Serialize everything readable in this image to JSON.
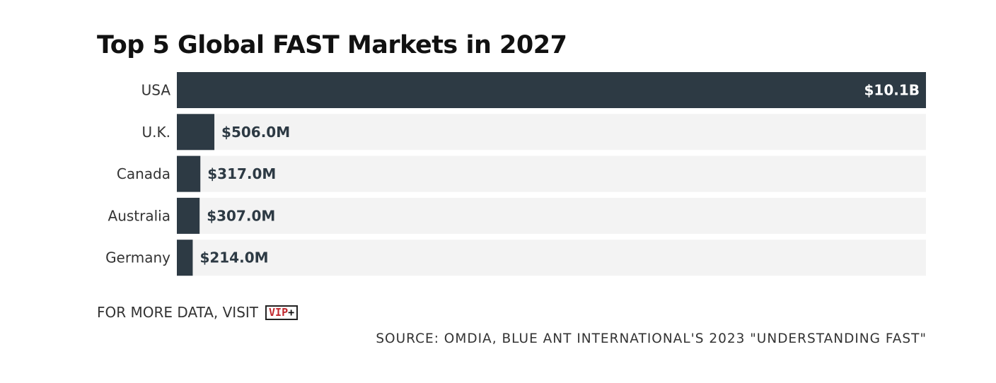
{
  "chart_data": {
    "type": "bar",
    "orientation": "horizontal",
    "title": "Top 5 Global FAST Markets in 2027",
    "categories": [
      "USA",
      "U.K.",
      "Canada",
      "Australia",
      "Germany"
    ],
    "values": [
      10100,
      506,
      317,
      307,
      214
    ],
    "value_unit": "millions USD",
    "data_labels": [
      "$10.1B",
      "$506.0M",
      "$317.0M",
      "$307.0M",
      "$214.0M"
    ],
    "xlim": [
      0,
      10100
    ],
    "grid": false,
    "legend": "none",
    "colors": {
      "bar": "#2d3a44",
      "track": "#f3f3f3",
      "label_inside": "#ffffff",
      "label_outside": "#2d3a44"
    }
  },
  "footer": {
    "more_data_text": "FOR MORE DATA, VISIT",
    "vip_logo_text": "VIP",
    "vip_logo_plus": "+",
    "source_text": "SOURCE: OMDIA, BLUE ANT INTERNATIONAL'S 2023 \"UNDERSTANDING FAST\""
  }
}
